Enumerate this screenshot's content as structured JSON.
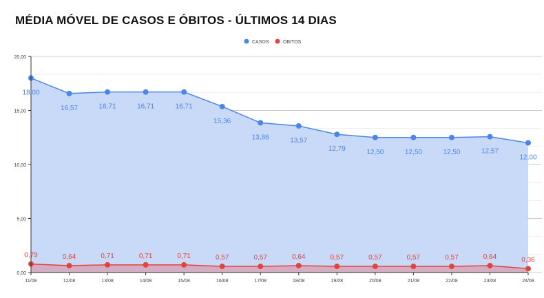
{
  "chart_data": {
    "type": "area",
    "title": "MÉDIA MÓVEL DE CASOS E ÓBITOS - ÚLTIMOS 14 DIAS",
    "categories": [
      "11/08",
      "12/08",
      "13/08",
      "14/08",
      "15/08",
      "16/08",
      "17/08",
      "18/08",
      "19/08",
      "20/08",
      "21/08",
      "22/08",
      "23/08",
      "24/08"
    ],
    "series": [
      {
        "name": "CASOS",
        "color": "#4a86e8",
        "fill": "#c9daf8",
        "values": [
          18.0,
          16.57,
          16.71,
          16.71,
          16.71,
          15.36,
          13.86,
          13.57,
          12.79,
          12.5,
          12.5,
          12.5,
          12.57,
          12.0
        ],
        "labels": [
          "18,00",
          "16,57",
          "16,71",
          "16,71",
          "16,71",
          "15,36",
          "13,86",
          "13,57",
          "12,79",
          "12,50",
          "12,50",
          "12,50",
          "12,57",
          "12,00"
        ]
      },
      {
        "name": "ÓBITOS",
        "color": "#e0443a",
        "fill": "#d5a6bd",
        "values": [
          0.79,
          0.64,
          0.71,
          0.71,
          0.71,
          0.57,
          0.57,
          0.64,
          0.57,
          0.57,
          0.57,
          0.57,
          0.64,
          0.36
        ],
        "labels": [
          "0,79",
          "0,64",
          "0,71",
          "0,71",
          "0,71",
          "0,57",
          "0,57",
          "0,64",
          "0,57",
          "0,57",
          "0,57",
          "0,57",
          "0,64",
          "0,36"
        ]
      }
    ],
    "yticks": [
      "0,00",
      "5,00",
      "10,00",
      "15,00",
      "20,00"
    ],
    "ylim": [
      0,
      20
    ],
    "legend": "top",
    "grid": true
  }
}
